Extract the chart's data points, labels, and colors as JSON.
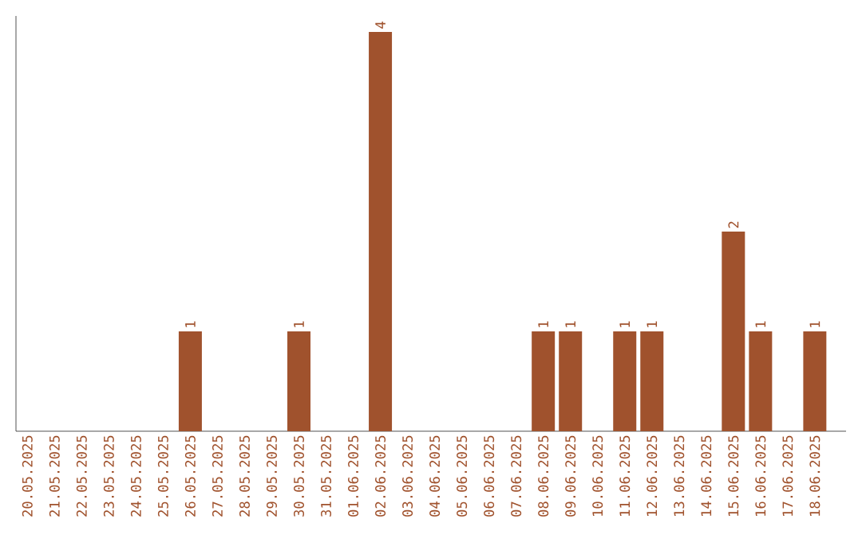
{
  "chart_data": {
    "type": "bar",
    "categories": [
      "20.05.2025",
      "21.05.2025",
      "22.05.2025",
      "23.05.2025",
      "24.05.2025",
      "25.05.2025",
      "26.05.2025",
      "27.05.2025",
      "28.05.2025",
      "29.05.2025",
      "30.05.2025",
      "31.05.2025",
      "01.06.2025",
      "02.06.2025",
      "03.06.2025",
      "04.06.2025",
      "05.06.2025",
      "06.06.2025",
      "07.06.2025",
      "08.06.2025",
      "09.06.2025",
      "10.06.2025",
      "11.06.2025",
      "12.06.2025",
      "13.06.2025",
      "14.06.2025",
      "15.06.2025",
      "16.06.2025",
      "17.06.2025",
      "18.06.2025"
    ],
    "values": [
      0,
      0,
      0,
      0,
      0,
      0,
      1,
      0,
      0,
      0,
      1,
      0,
      0,
      4,
      0,
      0,
      0,
      0,
      0,
      1,
      1,
      0,
      1,
      1,
      0,
      0,
      2,
      1,
      0,
      1
    ],
    "value_labels": [
      null,
      null,
      null,
      null,
      null,
      null,
      "1",
      null,
      null,
      null,
      "1",
      null,
      null,
      "4",
      null,
      null,
      null,
      null,
      null,
      "1",
      "1",
      null,
      "1",
      "1",
      null,
      null,
      "2",
      "1",
      null,
      "1"
    ],
    "color": "#a0522d",
    "tick_labels": "x"
  }
}
